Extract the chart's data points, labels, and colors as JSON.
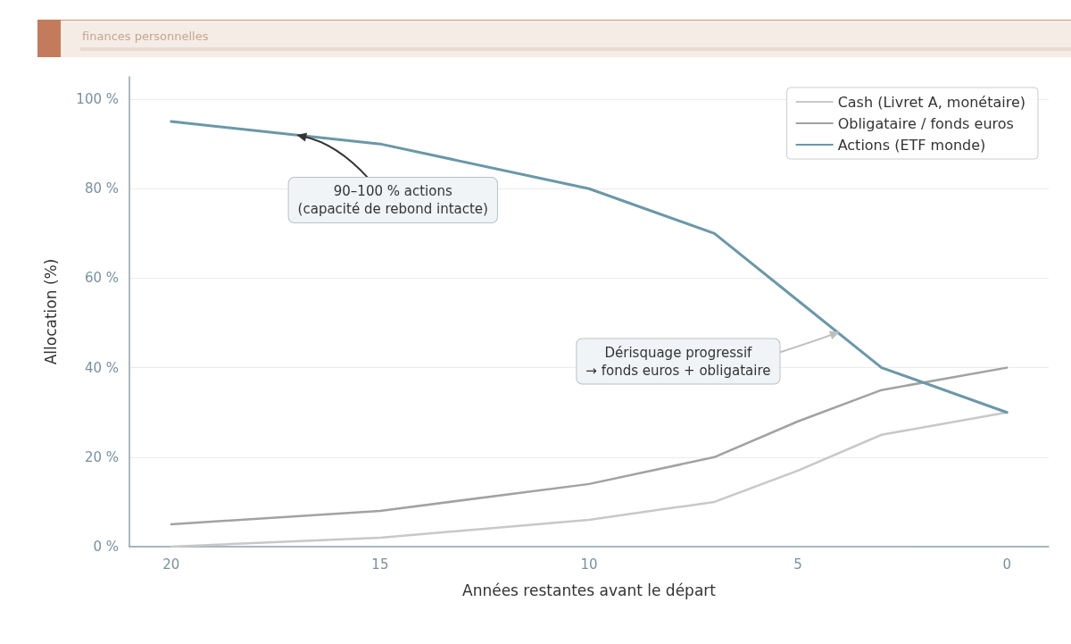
{
  "chart_data": {
    "type": "line",
    "subtitle": "finances personnelles",
    "xlabel": "Années restantes avant le départ",
    "ylabel": "Allocation (%)",
    "x": [
      20,
      15,
      10,
      7,
      5,
      3,
      0
    ],
    "series": [
      {
        "name": "Cash (Livret A, monétaire)",
        "color": "#c8c8c8",
        "values": [
          0,
          2,
          6,
          10,
          17,
          25,
          30
        ]
      },
      {
        "name": "Obligataire / fonds euros",
        "color": "#a2a2a2",
        "values": [
          5,
          8,
          14,
          20,
          28,
          35,
          40
        ]
      },
      {
        "name": "Actions (ETF monde)",
        "color": "#6a98a8",
        "values": [
          95,
          90,
          80,
          70,
          55,
          40,
          30
        ]
      }
    ],
    "xlim": [
      21,
      -1
    ],
    "xticks": [
      20,
      15,
      10,
      5,
      0
    ],
    "ylim": [
      0,
      105
    ],
    "yticks": [
      {
        "value": 0,
        "label": "0 %"
      },
      {
        "value": 20,
        "label": "20 %"
      },
      {
        "value": 40,
        "label": "40 %"
      },
      {
        "value": 60,
        "label": "60 %"
      },
      {
        "value": 80,
        "label": "80 %"
      },
      {
        "value": 100,
        "label": "100 %"
      }
    ],
    "grid": "y",
    "legend": "top right",
    "marker": "none",
    "line_style": "solid",
    "annotations": [
      {
        "text": "90–100 % actions\n(capacité de rebond intacte)",
        "x": 17,
        "y": 92
      },
      {
        "text": "Dérisquage progressif\n→ fonds euros + obligataire",
        "x": 4,
        "y": 48
      }
    ]
  }
}
